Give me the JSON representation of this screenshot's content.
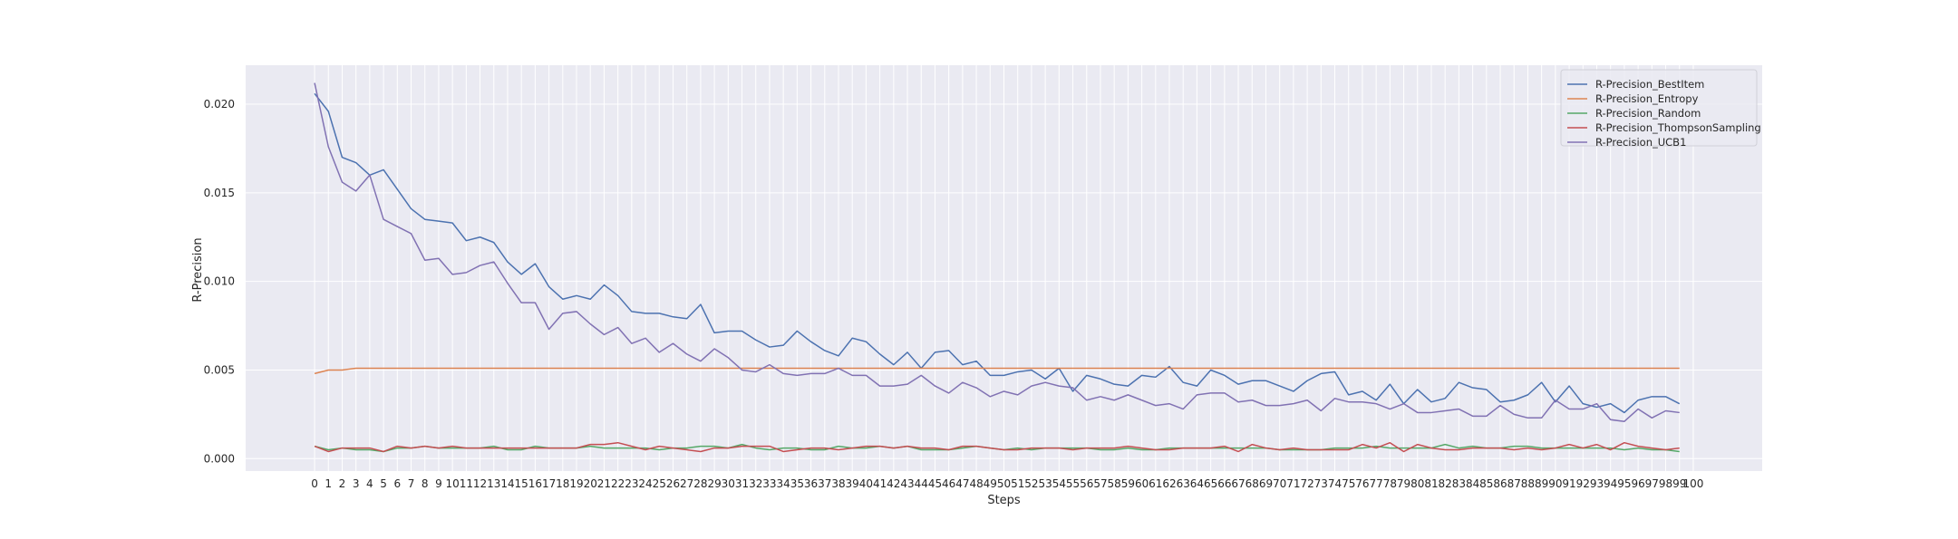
{
  "chart_data": {
    "type": "line",
    "xlabel": "Steps",
    "ylabel": "R-Precision",
    "xlim": [
      -5,
      105
    ],
    "ylim": [
      -0.0007,
      0.0222
    ],
    "xticks": [
      0,
      1,
      2,
      3,
      4,
      5,
      6,
      7,
      8,
      9,
      10,
      11,
      12,
      13,
      14,
      15,
      16,
      17,
      18,
      19,
      20,
      21,
      22,
      23,
      24,
      25,
      26,
      27,
      28,
      29,
      30,
      31,
      32,
      33,
      34,
      35,
      36,
      37,
      38,
      39,
      40,
      41,
      42,
      43,
      44,
      45,
      46,
      47,
      48,
      49,
      50,
      51,
      52,
      53,
      54,
      55,
      56,
      57,
      58,
      59,
      60,
      61,
      62,
      63,
      64,
      65,
      66,
      67,
      68,
      69,
      70,
      71,
      72,
      73,
      74,
      75,
      76,
      77,
      78,
      79,
      80,
      81,
      82,
      83,
      84,
      85,
      86,
      87,
      88,
      89,
      90,
      91,
      92,
      93,
      94,
      95,
      96,
      97,
      98,
      99,
      100
    ],
    "yticks": [
      0.0,
      0.005,
      0.01,
      0.015,
      0.02
    ],
    "ytick_labels": [
      "0.000",
      "0.005",
      "0.010",
      "0.015",
      "0.020"
    ],
    "grid": true,
    "legend_position": "top-right",
    "series": [
      {
        "name": "R-Precision_BestItem",
        "color": "#4c72b0",
        "values": [
          0.0206,
          0.0196,
          0.017,
          0.0167,
          0.016,
          0.0163,
          0.0152,
          0.0141,
          0.0135,
          0.0134,
          0.0133,
          0.0123,
          0.0125,
          0.0122,
          0.0111,
          0.0104,
          0.011,
          0.0097,
          0.009,
          0.0092,
          0.009,
          0.0098,
          0.0092,
          0.0083,
          0.0082,
          0.0082,
          0.008,
          0.0079,
          0.0087,
          0.0071,
          0.0072,
          0.0072,
          0.0067,
          0.0063,
          0.0064,
          0.0072,
          0.0066,
          0.0061,
          0.0058,
          0.0068,
          0.0066,
          0.0059,
          0.0053,
          0.006,
          0.0051,
          0.006,
          0.0061,
          0.0053,
          0.0055,
          0.0047,
          0.0047,
          0.0049,
          0.005,
          0.0045,
          0.0051,
          0.0038,
          0.0047,
          0.0045,
          0.0042,
          0.0041,
          0.0047,
          0.0046,
          0.0052,
          0.0043,
          0.0041,
          0.005,
          0.0047,
          0.0042,
          0.0044,
          0.0044,
          0.0041,
          0.0038,
          0.0044,
          0.0048,
          0.0049,
          0.0036,
          0.0038,
          0.0033,
          0.0042,
          0.0031,
          0.0039,
          0.0032,
          0.0034,
          0.0043,
          0.004,
          0.0039,
          0.0032,
          0.0033,
          0.0036,
          0.0043,
          0.0032,
          0.0041,
          0.0031,
          0.0029,
          0.0031,
          0.0026,
          0.0033,
          0.0035,
          0.0035,
          0.0031
        ]
      },
      {
        "name": "R-Precision_Entropy",
        "color": "#dd8452",
        "values": [
          0.0048,
          0.005,
          0.005,
          0.0051,
          0.0051,
          0.0051,
          0.0051,
          0.0051,
          0.0051,
          0.0051,
          0.0051,
          0.0051,
          0.0051,
          0.0051,
          0.0051,
          0.0051,
          0.0051,
          0.0051,
          0.0051,
          0.0051,
          0.0051,
          0.0051,
          0.0051,
          0.0051,
          0.0051,
          0.0051,
          0.0051,
          0.0051,
          0.0051,
          0.0051,
          0.0051,
          0.0051,
          0.0051,
          0.0051,
          0.0051,
          0.0051,
          0.0051,
          0.0051,
          0.0051,
          0.0051,
          0.0051,
          0.0051,
          0.0051,
          0.0051,
          0.0051,
          0.0051,
          0.0051,
          0.0051,
          0.0051,
          0.0051,
          0.0051,
          0.0051,
          0.0051,
          0.0051,
          0.0051,
          0.0051,
          0.0051,
          0.0051,
          0.0051,
          0.0051,
          0.0051,
          0.0051,
          0.0051,
          0.0051,
          0.0051,
          0.0051,
          0.0051,
          0.0051,
          0.0051,
          0.0051,
          0.0051,
          0.0051,
          0.0051,
          0.0051,
          0.0051,
          0.0051,
          0.0051,
          0.0051,
          0.0051,
          0.0051,
          0.0051,
          0.0051,
          0.0051,
          0.0051,
          0.0051,
          0.0051,
          0.0051,
          0.0051,
          0.0051,
          0.0051,
          0.0051,
          0.0051,
          0.0051,
          0.0051,
          0.0051,
          0.0051,
          0.0051,
          0.0051,
          0.0051,
          0.0051
        ]
      },
      {
        "name": "R-Precision_Random",
        "color": "#55a868",
        "values": [
          0.0007,
          0.0005,
          0.0006,
          0.0005,
          0.0005,
          0.0004,
          0.0006,
          0.0006,
          0.0007,
          0.0006,
          0.0006,
          0.0006,
          0.0006,
          0.0007,
          0.0005,
          0.0005,
          0.0007,
          0.0006,
          0.0006,
          0.0006,
          0.0007,
          0.0006,
          0.0006,
          0.0006,
          0.0006,
          0.0005,
          0.0006,
          0.0006,
          0.0007,
          0.0007,
          0.0006,
          0.0008,
          0.0006,
          0.0005,
          0.0006,
          0.0006,
          0.0005,
          0.0005,
          0.0007,
          0.0006,
          0.0006,
          0.0007,
          0.0006,
          0.0007,
          0.0005,
          0.0005,
          0.0005,
          0.0006,
          0.0007,
          0.0006,
          0.0005,
          0.0006,
          0.0005,
          0.0006,
          0.0006,
          0.0006,
          0.0006,
          0.0005,
          0.0005,
          0.0006,
          0.0005,
          0.0005,
          0.0006,
          0.0006,
          0.0006,
          0.0006,
          0.0006,
          0.0006,
          0.0006,
          0.0006,
          0.0005,
          0.0005,
          0.0005,
          0.0005,
          0.0006,
          0.0006,
          0.0006,
          0.0007,
          0.0006,
          0.0006,
          0.0006,
          0.0006,
          0.0008,
          0.0006,
          0.0007,
          0.0006,
          0.0006,
          0.0007,
          0.0007,
          0.0006,
          0.0006,
          0.0006,
          0.0006,
          0.0006,
          0.0006,
          0.0005,
          0.0006,
          0.0005,
          0.0005,
          0.0004
        ]
      },
      {
        "name": "R-Precision_ThompsonSampling",
        "color": "#c44e52",
        "values": [
          0.0007,
          0.0004,
          0.0006,
          0.0006,
          0.0006,
          0.0004,
          0.0007,
          0.0006,
          0.0007,
          0.0006,
          0.0007,
          0.0006,
          0.0006,
          0.0006,
          0.0006,
          0.0006,
          0.0006,
          0.0006,
          0.0006,
          0.0006,
          0.0008,
          0.0008,
          0.0009,
          0.0007,
          0.0005,
          0.0007,
          0.0006,
          0.0005,
          0.0004,
          0.0006,
          0.0006,
          0.0007,
          0.0007,
          0.0007,
          0.0004,
          0.0005,
          0.0006,
          0.0006,
          0.0005,
          0.0006,
          0.0007,
          0.0007,
          0.0006,
          0.0007,
          0.0006,
          0.0006,
          0.0005,
          0.0007,
          0.0007,
          0.0006,
          0.0005,
          0.0005,
          0.0006,
          0.0006,
          0.0006,
          0.0005,
          0.0006,
          0.0006,
          0.0006,
          0.0007,
          0.0006,
          0.0005,
          0.0005,
          0.0006,
          0.0006,
          0.0006,
          0.0007,
          0.0004,
          0.0008,
          0.0006,
          0.0005,
          0.0006,
          0.0005,
          0.0005,
          0.0005,
          0.0005,
          0.0008,
          0.0006,
          0.0009,
          0.0004,
          0.0008,
          0.0006,
          0.0005,
          0.0005,
          0.0006,
          0.0006,
          0.0006,
          0.0005,
          0.0006,
          0.0005,
          0.0006,
          0.0008,
          0.0006,
          0.0008,
          0.0005,
          0.0009,
          0.0007,
          0.0006,
          0.0005,
          0.0006
        ]
      },
      {
        "name": "R-Precision_UCB1",
        "color": "#8172b3",
        "values": [
          0.0212,
          0.0176,
          0.0156,
          0.0151,
          0.016,
          0.0135,
          0.0131,
          0.0127,
          0.0112,
          0.0113,
          0.0104,
          0.0105,
          0.0109,
          0.0111,
          0.0099,
          0.0088,
          0.0088,
          0.0073,
          0.0082,
          0.0083,
          0.0076,
          0.007,
          0.0074,
          0.0065,
          0.0068,
          0.006,
          0.0065,
          0.0059,
          0.0055,
          0.0062,
          0.0057,
          0.005,
          0.0049,
          0.0053,
          0.0048,
          0.0047,
          0.0048,
          0.0048,
          0.0051,
          0.0047,
          0.0047,
          0.0041,
          0.0041,
          0.0042,
          0.0047,
          0.0041,
          0.0037,
          0.0043,
          0.004,
          0.0035,
          0.0038,
          0.0036,
          0.0041,
          0.0043,
          0.0041,
          0.004,
          0.0033,
          0.0035,
          0.0033,
          0.0036,
          0.0033,
          0.003,
          0.0031,
          0.0028,
          0.0036,
          0.0037,
          0.0037,
          0.0032,
          0.0033,
          0.003,
          0.003,
          0.0031,
          0.0033,
          0.0027,
          0.0034,
          0.0032,
          0.0032,
          0.0031,
          0.0028,
          0.0031,
          0.0026,
          0.0026,
          0.0027,
          0.0028,
          0.0024,
          0.0024,
          0.003,
          0.0025,
          0.0023,
          0.0023,
          0.0033,
          0.0028,
          0.0028,
          0.0031,
          0.0022,
          0.0021,
          0.0028,
          0.0023,
          0.0027,
          0.0026
        ]
      }
    ]
  }
}
